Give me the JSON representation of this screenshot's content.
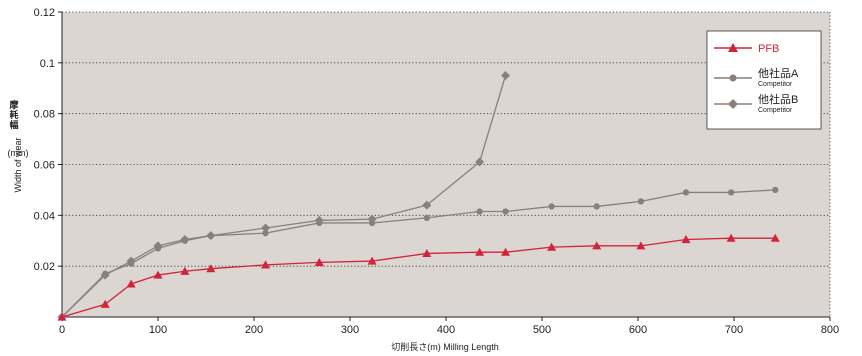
{
  "chart_data": {
    "type": "line",
    "title": "",
    "xlabel": "切削長さ(m)  Milling Length",
    "ylabel": "Width of wear",
    "ylabel_jp": "摩耗幅",
    "ylabel_unit": "(mm)",
    "xlim": [
      0,
      800
    ],
    "ylim": [
      0,
      0.12
    ],
    "x_ticks": [
      0,
      100,
      200,
      300,
      400,
      500,
      600,
      700,
      800
    ],
    "y_ticks": [
      0.02,
      0.04,
      0.06,
      0.08,
      0.1,
      0.12
    ],
    "grid": "horizontal dotted",
    "legend_position": "top-right",
    "background_color": "#dcd6d2",
    "series": [
      {
        "name": "PFB",
        "subtitle": "",
        "color": "#d0243a",
        "marker": "triangle",
        "points": [
          [
            0,
            0.0
          ],
          [
            45,
            0.005
          ],
          [
            72,
            0.013
          ],
          [
            100,
            0.0165
          ],
          [
            128,
            0.018
          ],
          [
            155,
            0.019
          ],
          [
            212,
            0.0205
          ],
          [
            268,
            0.0215
          ],
          [
            323,
            0.022
          ],
          [
            380,
            0.025
          ],
          [
            435,
            0.0255
          ],
          [
            462,
            0.0255
          ],
          [
            510,
            0.0275
          ],
          [
            557,
            0.028
          ],
          [
            603,
            0.028
          ],
          [
            650,
            0.0305
          ],
          [
            697,
            0.031
          ],
          [
            743,
            0.031
          ]
        ]
      },
      {
        "name": "他社品A",
        "subtitle": "Competitor",
        "color": "#8a7f7b",
        "marker": "circle",
        "points": [
          [
            0,
            0.0
          ],
          [
            45,
            0.017
          ],
          [
            72,
            0.021
          ],
          [
            100,
            0.027
          ],
          [
            128,
            0.03
          ],
          [
            155,
            0.032
          ],
          [
            212,
            0.033
          ],
          [
            268,
            0.037
          ],
          [
            323,
            0.037
          ],
          [
            380,
            0.039
          ],
          [
            435,
            0.0415
          ],
          [
            462,
            0.0415
          ],
          [
            510,
            0.0435
          ],
          [
            557,
            0.0435
          ],
          [
            603,
            0.0455
          ],
          [
            650,
            0.049
          ],
          [
            697,
            0.049
          ],
          [
            743,
            0.05
          ]
        ]
      },
      {
        "name": "他社品B",
        "subtitle": "Competitor",
        "color": "#8a7f7b",
        "marker": "diamond",
        "points": [
          [
            0,
            0.0
          ],
          [
            45,
            0.0165
          ],
          [
            72,
            0.022
          ],
          [
            100,
            0.028
          ],
          [
            128,
            0.0305
          ],
          [
            155,
            0.032
          ],
          [
            212,
            0.035
          ],
          [
            268,
            0.038
          ],
          [
            323,
            0.0385
          ],
          [
            380,
            0.044
          ],
          [
            435,
            0.061
          ],
          [
            462,
            0.095
          ]
        ]
      }
    ]
  }
}
